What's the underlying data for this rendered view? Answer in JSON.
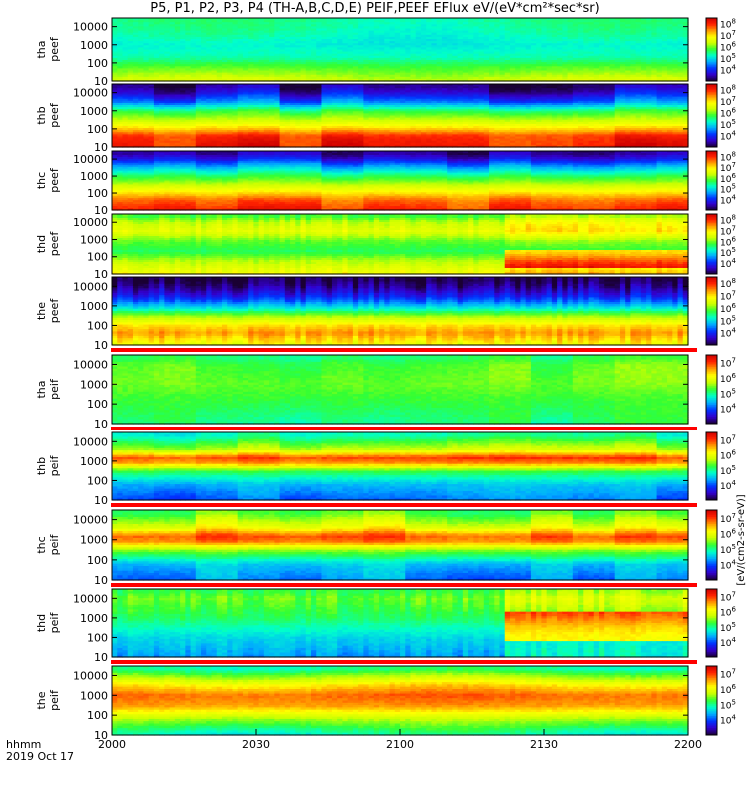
{
  "title": "P5, P1, P2, P3, P4 (TH-A,B,C,D,E) PEIF,PEEF EFlux eV/(eV*cm²*sec*sr)",
  "colorbar_label": "[eV/(cm2-s-sr-eV)]",
  "time_axis": {
    "label_line1": "hhmm",
    "label_line2": "2019 Oct 17",
    "ticks": [
      "2000",
      "2030",
      "2100",
      "2130",
      "2200"
    ]
  },
  "colors": {
    "background": "#ffffff",
    "separator": "#ff0000",
    "colormap": [
      "#1a0033",
      "#3300cc",
      "#0033ff",
      "#00aaff",
      "#00ffcc",
      "#33ff33",
      "#ccff00",
      "#ffff00",
      "#ff9900",
      "#ff2200",
      "#cc0000"
    ]
  },
  "chart_data": {
    "type": "heatmap",
    "x_range_minutes": [
      0,
      120
    ],
    "x_tick_values_minutes": [
      0,
      30,
      60,
      90,
      120
    ],
    "y_scale": "log",
    "y_range_eV": [
      10,
      30000
    ],
    "y_ticks": [
      "10000",
      "1000",
      "100",
      "10"
    ],
    "panels": [
      {
        "name": "tha peef",
        "line1": "tha",
        "line2": "peef",
        "cbar_ticks": [
          "10^8",
          "10^7",
          "10^6",
          "10^5",
          "10^4"
        ],
        "clim": [
          3,
          8.5
        ],
        "profile": [
          [
            10,
            6.4
          ],
          [
            60,
            5.8
          ],
          [
            200,
            5.3
          ],
          [
            1000,
            5.1
          ],
          [
            5000,
            5.3
          ],
          [
            20000,
            5.4
          ]
        ],
        "time_var": "smooth",
        "amp": 0.25
      },
      {
        "name": "thb peef",
        "line1": "thb",
        "line2": "peef",
        "cbar_ticks": [
          "10^8",
          "10^7",
          "10^6",
          "10^5",
          "10^4"
        ],
        "clim": [
          3,
          8.5
        ],
        "profile": [
          [
            10,
            8.1
          ],
          [
            40,
            7.9
          ],
          [
            100,
            7.1
          ],
          [
            300,
            6.3
          ],
          [
            1000,
            5.6
          ],
          [
            3000,
            4.4
          ],
          [
            10000,
            3.6
          ],
          [
            20000,
            3.3
          ]
        ],
        "time_var": "blocks",
        "amp": 0.45
      },
      {
        "name": "thc peef",
        "line1": "thc",
        "line2": "peef",
        "cbar_ticks": [
          "10^8",
          "10^7",
          "10^6",
          "10^5",
          "10^4"
        ],
        "clim": [
          3,
          8.5
        ],
        "profile": [
          [
            10,
            8.0
          ],
          [
            40,
            7.6
          ],
          [
            100,
            7.0
          ],
          [
            300,
            6.3
          ],
          [
            1000,
            5.6
          ],
          [
            3000,
            4.8
          ],
          [
            10000,
            3.8
          ],
          [
            20000,
            3.4
          ]
        ],
        "time_var": "blocks",
        "amp": 0.35
      },
      {
        "name": "thd peef",
        "line1": "thd",
        "line2": "peef",
        "cbar_ticks": [
          "10^8",
          "10^7",
          "10^6",
          "10^5",
          "10^4"
        ],
        "clim": [
          3,
          8.5
        ],
        "profile": [
          [
            10,
            6.8
          ],
          [
            60,
            6.2
          ],
          [
            200,
            5.6
          ],
          [
            800,
            5.9
          ],
          [
            3000,
            6.6
          ],
          [
            10000,
            6.3
          ],
          [
            20000,
            5.8
          ]
        ],
        "time_var": "bursty",
        "amp": 0.4
      },
      {
        "name": "the peef",
        "line1": "the",
        "line2": "peef",
        "cbar_ticks": [
          "10^8",
          "10^7",
          "10^6",
          "10^5",
          "10^4"
        ],
        "clim": [
          3,
          8.5
        ],
        "profile": [
          [
            10,
            6.7
          ],
          [
            40,
            7.4
          ],
          [
            100,
            7.0
          ],
          [
            300,
            6.1
          ],
          [
            1000,
            4.8
          ],
          [
            3000,
            3.9
          ],
          [
            10000,
            3.3
          ],
          [
            20000,
            3.1
          ]
        ],
        "time_var": "noisy",
        "amp": 0.35
      },
      {
        "name": "tha peif",
        "line1": "tha",
        "line2": "peif",
        "cbar_ticks": [
          "10^7",
          "10^6",
          "10^5",
          "10^4"
        ],
        "clim": [
          3,
          7.5
        ],
        "profile": [
          [
            10,
            5.0
          ],
          [
            100,
            5.2
          ],
          [
            1000,
            5.4
          ],
          [
            10000,
            5.3
          ],
          [
            20000,
            5.1
          ]
        ],
        "time_var": "blocks",
        "amp": 0.3
      },
      {
        "name": "thb peif",
        "line1": "thb",
        "line2": "peif",
        "cbar_ticks": [
          "10^7",
          "10^6",
          "10^5",
          "10^4"
        ],
        "clim": [
          3,
          7.5
        ],
        "profile": [
          [
            10,
            4.0
          ],
          [
            60,
            4.4
          ],
          [
            300,
            5.2
          ],
          [
            800,
            6.6
          ],
          [
            1500,
            6.9
          ],
          [
            4000,
            5.6
          ],
          [
            20000,
            4.8
          ]
        ],
        "time_var": "blocks",
        "amp": 0.45
      },
      {
        "name": "thc peif",
        "line1": "thc",
        "line2": "peif",
        "cbar_ticks": [
          "10^7",
          "10^6",
          "10^5",
          "10^4"
        ],
        "clim": [
          3,
          7.5
        ],
        "profile": [
          [
            10,
            4.2
          ],
          [
            60,
            4.5
          ],
          [
            300,
            5.5
          ],
          [
            800,
            6.7
          ],
          [
            1500,
            6.9
          ],
          [
            4000,
            6.0
          ],
          [
            20000,
            5.3
          ]
        ],
        "time_var": "blocks",
        "amp": 0.35
      },
      {
        "name": "thd peif",
        "line1": "thd",
        "line2": "peif",
        "cbar_ticks": [
          "10^7",
          "10^6",
          "10^5",
          "10^4"
        ],
        "clim": [
          3,
          7.5
        ],
        "profile": [
          [
            10,
            4.3
          ],
          [
            100,
            4.6
          ],
          [
            1000,
            5.1
          ],
          [
            10000,
            5.4
          ],
          [
            20000,
            5.2
          ]
        ],
        "time_var": "bursty_ion",
        "amp": 0.4
      },
      {
        "name": "the peif",
        "line1": "the",
        "line2": "peif",
        "cbar_ticks": [
          "10^7",
          "10^6",
          "10^5",
          "10^4"
        ],
        "clim": [
          3,
          7.5
        ],
        "profile": [
          [
            10,
            4.8
          ],
          [
            60,
            5.6
          ],
          [
            300,
            6.6
          ],
          [
            1000,
            6.8
          ],
          [
            3000,
            6.3
          ],
          [
            10000,
            5.5
          ],
          [
            20000,
            5.0
          ]
        ],
        "time_var": "smooth",
        "amp": 0.3
      }
    ]
  }
}
